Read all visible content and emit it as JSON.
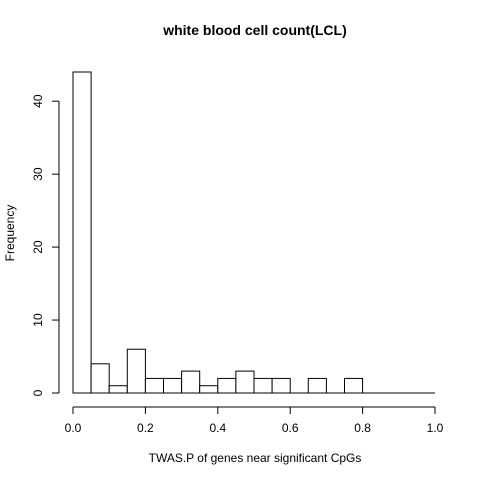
{
  "chart_data": {
    "type": "bar",
    "subtype": "histogram",
    "title": "white blood cell count(LCL)",
    "xlabel": "TWAS.P of genes near significant CpGs",
    "ylabel": "Frequency",
    "bin_width": 0.05,
    "bins": [
      {
        "x0": 0.0,
        "x1": 0.05,
        "count": 44
      },
      {
        "x0": 0.05,
        "x1": 0.1,
        "count": 4
      },
      {
        "x0": 0.1,
        "x1": 0.15,
        "count": 1
      },
      {
        "x0": 0.15,
        "x1": 0.2,
        "count": 6
      },
      {
        "x0": 0.2,
        "x1": 0.25,
        "count": 2
      },
      {
        "x0": 0.25,
        "x1": 0.3,
        "count": 2
      },
      {
        "x0": 0.3,
        "x1": 0.35,
        "count": 3
      },
      {
        "x0": 0.35,
        "x1": 0.4,
        "count": 1
      },
      {
        "x0": 0.4,
        "x1": 0.45,
        "count": 2
      },
      {
        "x0": 0.45,
        "x1": 0.5,
        "count": 3
      },
      {
        "x0": 0.5,
        "x1": 0.55,
        "count": 2
      },
      {
        "x0": 0.55,
        "x1": 0.6,
        "count": 2
      },
      {
        "x0": 0.6,
        "x1": 0.65,
        "count": 0
      },
      {
        "x0": 0.65,
        "x1": 0.7,
        "count": 2
      },
      {
        "x0": 0.7,
        "x1": 0.75,
        "count": 0
      },
      {
        "x0": 0.75,
        "x1": 0.8,
        "count": 2
      },
      {
        "x0": 0.8,
        "x1": 0.85,
        "count": 0
      },
      {
        "x0": 0.85,
        "x1": 0.9,
        "count": 0
      },
      {
        "x0": 0.9,
        "x1": 0.95,
        "count": 0
      },
      {
        "x0": 0.95,
        "x1": 1.0,
        "count": 0
      }
    ],
    "xlim": [
      0,
      1
    ],
    "ylim": [
      0,
      44
    ],
    "x_ticks": [
      0.0,
      0.2,
      0.4,
      0.6,
      0.8,
      1.0
    ],
    "x_tick_labels": [
      "0.0",
      "0.2",
      "0.4",
      "0.6",
      "0.8",
      "1.0"
    ],
    "y_ticks": [
      0,
      10,
      20,
      30,
      40
    ],
    "y_tick_labels": [
      "0",
      "10",
      "20",
      "30",
      "40"
    ],
    "grid": false,
    "legend": "none",
    "colors": {
      "bar_fill": "#ffffff",
      "bar_stroke": "#000000",
      "axis": "#000000"
    }
  }
}
